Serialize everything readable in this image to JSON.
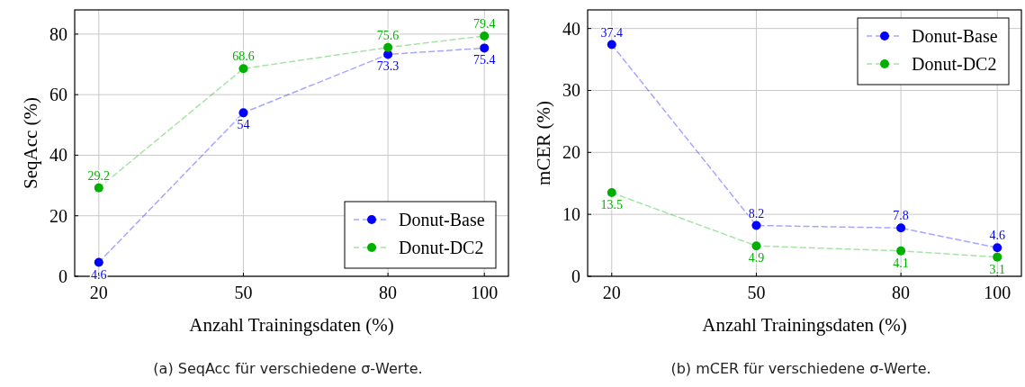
{
  "chart_data": [
    {
      "type": "line",
      "xlabel": "Anzahl Trainingsdaten (%)",
      "ylabel": "SeqAcc (%)",
      "x": [
        20,
        50,
        80,
        100
      ],
      "xlim": [
        15,
        105
      ],
      "xticks": [
        20,
        50,
        80,
        100
      ],
      "ylim": [
        0,
        88
      ],
      "yticks": [
        0,
        20,
        40,
        60,
        80
      ],
      "grid": true,
      "legend": "bottom right",
      "marker": "circle",
      "line_style": "dashed",
      "data_labels": true,
      "series": [
        {
          "name": "Donut-Base",
          "color": "#0000ff",
          "values": [
            4.6,
            54,
            73.3,
            75.4
          ]
        },
        {
          "name": "Donut-DC2",
          "color": "#00b000",
          "values": [
            29.2,
            68.6,
            75.6,
            79.4
          ]
        }
      ],
      "annotations": [
        "(a) SeqAcc für verschiedene σ-Werte."
      ]
    },
    {
      "type": "line",
      "xlabel": "Anzahl Trainingsdaten (%)",
      "ylabel": "mCER (%)",
      "x": [
        20,
        50,
        80,
        100
      ],
      "xlim": [
        15,
        105
      ],
      "xticks": [
        20,
        50,
        80,
        100
      ],
      "ylim": [
        0,
        43
      ],
      "yticks": [
        0,
        10,
        20,
        30,
        40
      ],
      "grid": true,
      "legend": "top right",
      "marker": "circle",
      "line_style": "dashed",
      "data_labels": true,
      "series": [
        {
          "name": "Donut-Base",
          "color": "#0000ff",
          "values": [
            37.4,
            8.2,
            7.8,
            4.6
          ]
        },
        {
          "name": "Donut-DC2",
          "color": "#00b000",
          "values": [
            13.5,
            4.9,
            4.1,
            3.1
          ]
        }
      ],
      "annotations": [
        "(b) mCER für verschiedene σ-Werte."
      ]
    }
  ]
}
